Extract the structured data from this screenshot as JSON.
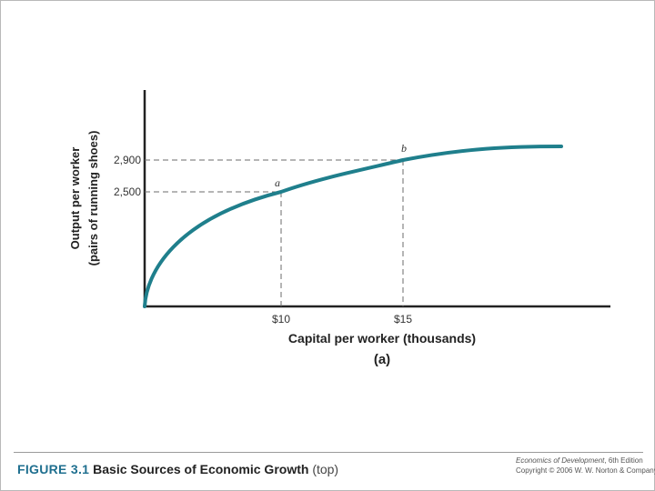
{
  "chart_data": {
    "type": "line",
    "xlabel": "Capital per worker (thousands)",
    "ylabel_line1": "Output per worker",
    "ylabel_line2": "(pairs of running shoes)",
    "panel_label": "(a)",
    "x_tick_labels": [
      "$10",
      "$15"
    ],
    "x_tick_values": [
      10,
      15
    ],
    "y_tick_labels": [
      "2,500",
      "2,900"
    ],
    "y_tick_values": [
      2500,
      2900
    ],
    "points": [
      {
        "label": "a",
        "x": 10,
        "y": 2500
      },
      {
        "label": "b",
        "x": 15,
        "y": 2900
      }
    ],
    "curve_description_type": "concave production function",
    "series": [
      {
        "color": "#1f7f8c"
      }
    ],
    "grid": false
  },
  "caption": {
    "figure_number": "FIGURE 3.1",
    "title": "Basic Sources of Economic Growth",
    "note": "(top)"
  },
  "publisher": {
    "book_title": "Economics of Development",
    "edition": ", 6th Edition",
    "copyright": "Copyright © 2006 W. W. Norton & Company"
  },
  "colors": {
    "curve": "#1f7f8c",
    "axis": "#222222",
    "dashed": "#6b6b6b",
    "figure_number": "#1f6f8f"
  }
}
